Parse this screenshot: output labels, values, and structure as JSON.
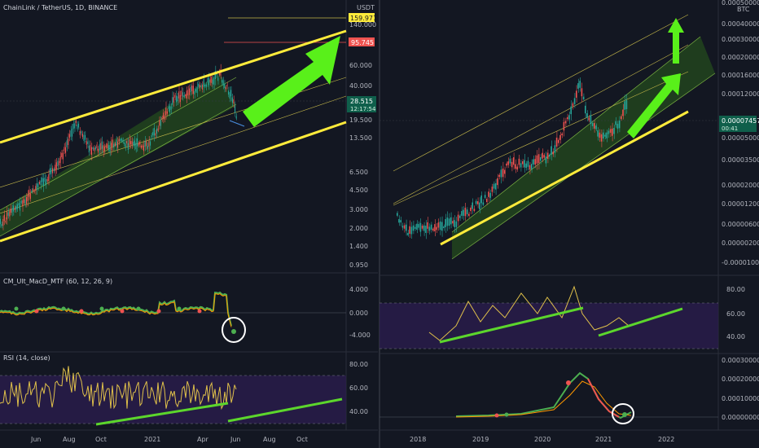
{
  "colors": {
    "bg": "#131722",
    "grid": "#1e222d",
    "separator": "#2a2e39",
    "yellow": "#ffeb3b",
    "green": "#5cd62c",
    "bright_green": "#59f01a",
    "channel_fill": "#2f6d1a",
    "purple_band": "#2a1d4d",
    "up_candle": "#26a69a",
    "down_candle": "#ef5350",
    "rsi_line": "#e0c14a",
    "macd_line": "#4caf50",
    "signal_line": "#ff9800",
    "label_yellow": "#ffeb3b",
    "label_red": "#ef5350",
    "label_teal": "#0f5f4b"
  },
  "left": {
    "title": "ChainLink / TetherUS, 1D, BINANCE",
    "axis_unit": "USDT",
    "price_ticks": [
      "140.000",
      "95.745",
      "60.000",
      "40.000",
      "19.500",
      "13.500",
      "6.500",
      "4.500",
      "3.000",
      "2.000",
      "1.400",
      "0.950"
    ],
    "label_top": "159.971",
    "label_mid": "95.745",
    "label_price": "28.515",
    "label_sub": "12:17:54",
    "macd_title": "CM_Ult_MacD_MTF (60, 12, 26, 9)",
    "macd_ticks": [
      "4.000",
      "0.000",
      "-4.000"
    ],
    "rsi_title": "RSI (14, close)",
    "rsi_ticks": [
      "80.00",
      "60.00",
      "40.00"
    ],
    "x_ticks": [
      "Jun",
      "Aug",
      "Oct",
      "2021",
      "Apr",
      "Jun",
      "Aug",
      "Oct"
    ]
  },
  "right": {
    "axis_unit": "BTC",
    "price_ticks": [
      "0.00050000",
      "0.00040000",
      "0.00030000",
      "0.00020000",
      "0.00016000",
      "0.00012000",
      "0.00009000",
      "0.00007457",
      "0.00005000",
      "0.00003500",
      "0.00002000",
      "0.00001200",
      "0.00000600",
      "0.00000200",
      "-0.00001000"
    ],
    "label_price": "0.00007457",
    "label_sub": "00:41",
    "rsi_ticks": [
      "80.00",
      "60.00",
      "40.00"
    ],
    "macd_ticks": [
      "0.00030000",
      "0.00020000",
      "0.00010000",
      "0.00000000"
    ],
    "x_ticks": [
      "2018",
      "2019",
      "2020",
      "2021",
      "2022"
    ]
  },
  "chart_data": [
    {
      "type": "candlestick",
      "title": "ChainLink / TetherUS, 1D, BINANCE",
      "ylabel": "USDT",
      "x_ticks": [
        "Jun",
        "Aug",
        "Oct",
        "2021",
        "Apr",
        "Jun",
        "Aug",
        "Oct"
      ],
      "y_ticks": [
        140,
        95.745,
        60,
        40,
        19.5,
        13.5,
        6.5,
        4.5,
        3,
        2,
        1.4,
        0.95
      ],
      "scale": "log",
      "annotations": [
        "159.971",
        "95.745",
        "28.515"
      ]
    },
    {
      "type": "line",
      "title": "CM_Ult_MacD_MTF (60, 12, 26, 9)",
      "y_ticks": [
        4,
        0,
        -4
      ]
    },
    {
      "type": "line",
      "title": "RSI (14, close)",
      "y_ticks": [
        80,
        60,
        40
      ]
    },
    {
      "type": "candlestick",
      "ylabel": "BTC",
      "x_ticks": [
        "2018",
        "2019",
        "2020",
        "2021",
        "2022"
      ],
      "annotations": [
        "0.00007457"
      ]
    },
    {
      "type": "line",
      "y_ticks": [
        80,
        60,
        40
      ]
    },
    {
      "type": "line",
      "y_ticks": [
        0.0003,
        0.0002,
        0.0001,
        0
      ]
    }
  ]
}
